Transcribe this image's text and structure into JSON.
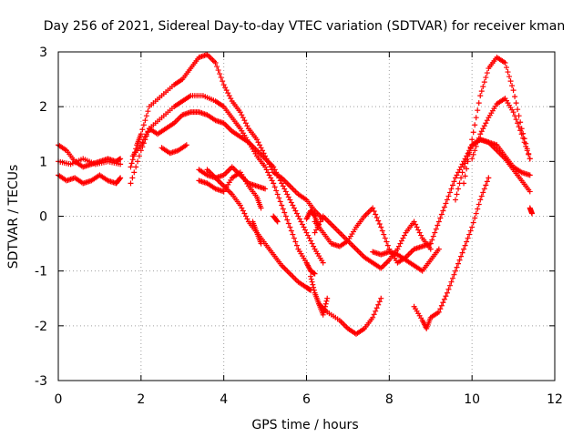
{
  "chart_data": {
    "type": "scatter",
    "title": "Day 256 of 2021, Sidereal Day-to-day VTEC variation (SDTVAR) for receiver kman",
    "xlabel": "GPS time / hours",
    "ylabel": "SDTVAR / TECUs",
    "xlim": [
      0,
      12
    ],
    "ylim": [
      -3,
      3
    ],
    "x_ticks": [
      "0",
      "2",
      "4",
      "6",
      "8",
      "10",
      "12"
    ],
    "y_ticks": [
      "-3",
      "-2",
      "-1",
      "0",
      "1",
      "2",
      "3"
    ],
    "grid": true,
    "marker": "+",
    "color": "#ff0000",
    "series": [
      {
        "x": [
          0.0,
          0.2,
          0.4,
          0.6,
          0.8,
          1.0,
          1.2,
          1.4,
          1.5
        ],
        "y": [
          1.3,
          1.2,
          1.0,
          0.9,
          0.95,
          1.0,
          1.05,
          1.0,
          1.05
        ]
      },
      {
        "x": [
          0.0,
          0.2,
          0.4,
          0.6,
          0.8,
          1.0,
          1.2,
          1.4,
          1.5
        ],
        "y": [
          0.75,
          0.65,
          0.7,
          0.6,
          0.65,
          0.75,
          0.65,
          0.6,
          0.7
        ]
      },
      {
        "x": [
          0.0,
          0.3,
          0.6,
          0.9,
          1.2,
          1.5
        ],
        "y": [
          1.0,
          0.95,
          1.05,
          0.95,
          1.0,
          0.95
        ]
      },
      {
        "x": [
          1.75,
          1.9,
          2.0,
          2.2,
          2.5,
          2.8,
          3.0,
          3.2,
          3.4,
          3.6,
          3.8,
          4.0,
          4.2,
          4.4,
          4.6,
          4.8,
          5.0,
          5.2,
          5.4,
          5.6,
          5.8,
          6.0,
          6.2,
          6.4
        ],
        "y": [
          0.9,
          1.3,
          1.5,
          2.0,
          2.2,
          2.4,
          2.5,
          2.7,
          2.9,
          2.95,
          2.8,
          2.4,
          2.1,
          1.9,
          1.6,
          1.4,
          1.1,
          0.8,
          0.7,
          0.55,
          0.4,
          0.3,
          0.1,
          -0.05
        ]
      },
      {
        "x": [
          1.8,
          2.0,
          2.2,
          2.4,
          2.6,
          2.8,
          3.0,
          3.2,
          3.4,
          3.6,
          3.8,
          4.0,
          4.2,
          4.4,
          4.6,
          4.8,
          5.0,
          5.2,
          5.4,
          5.6,
          5.8,
          6.0,
          6.2,
          6.4
        ],
        "y": [
          1.1,
          1.3,
          1.6,
          1.5,
          1.6,
          1.7,
          1.85,
          1.9,
          1.9,
          1.85,
          1.75,
          1.7,
          1.55,
          1.45,
          1.35,
          1.2,
          1.05,
          0.9,
          0.6,
          0.3,
          0.0,
          -0.3,
          -0.6,
          -0.85
        ]
      },
      {
        "x": [
          1.75,
          2.0,
          2.2,
          2.5,
          2.8,
          3.0,
          3.2,
          3.5,
          3.8,
          4.0,
          4.2,
          4.4,
          4.6,
          4.8,
          5.0,
          5.2,
          5.4,
          5.6,
          5.8,
          6.0,
          6.1,
          6.2
        ],
        "y": [
          0.6,
          1.2,
          1.6,
          1.8,
          2.0,
          2.1,
          2.2,
          2.2,
          2.1,
          2.0,
          1.8,
          1.6,
          1.35,
          1.1,
          0.9,
          0.6,
          0.2,
          -0.2,
          -0.6,
          -0.85,
          -1.0,
          -1.05
        ]
      },
      {
        "x": [
          2.5,
          2.7,
          2.9,
          3.1
        ],
        "y": [
          1.25,
          1.15,
          1.2,
          1.3
        ]
      },
      {
        "x": [
          3.4,
          3.6,
          3.8,
          4.0,
          4.2,
          4.4,
          4.6,
          4.8,
          5.0,
          5.2,
          5.4,
          5.6,
          5.8,
          6.0,
          6.1
        ],
        "y": [
          0.85,
          0.75,
          0.7,
          0.55,
          0.4,
          0.2,
          -0.1,
          -0.3,
          -0.5,
          -0.7,
          -0.9,
          -1.05,
          -1.2,
          -1.3,
          -1.35
        ]
      },
      {
        "x": [
          3.4,
          3.6,
          3.8,
          4.0,
          4.2,
          4.4,
          4.6,
          4.8,
          4.9
        ],
        "y": [
          0.65,
          0.6,
          0.5,
          0.45,
          0.7,
          0.8,
          0.55,
          0.35,
          0.15
        ]
      },
      {
        "x": [
          3.6,
          3.8,
          4.0,
          4.2,
          4.4,
          4.6,
          4.8,
          5.0
        ],
        "y": [
          0.85,
          0.7,
          0.75,
          0.9,
          0.75,
          0.6,
          0.55,
          0.5
        ]
      },
      {
        "x": [
          4.7,
          4.8,
          4.9
        ],
        "y": [
          -0.1,
          -0.3,
          -0.5
        ]
      },
      {
        "x": [
          5.2,
          5.3
        ],
        "y": [
          0.0,
          -0.1
        ]
      },
      {
        "x": [
          6.0,
          6.1,
          6.2,
          6.3
        ],
        "y": [
          -0.05,
          0.1,
          0.0,
          -0.2
        ]
      },
      {
        "x": [
          6.1,
          6.2,
          6.3,
          6.4,
          6.5
        ],
        "y": [
          -1.1,
          -1.4,
          -1.6,
          -1.8,
          -1.5
        ]
      },
      {
        "x": [
          6.3,
          6.5,
          6.8,
          7.0,
          7.2,
          7.4,
          7.6,
          7.8
        ],
        "y": [
          -1.6,
          -1.75,
          -1.9,
          -2.05,
          -2.15,
          -2.05,
          -1.85,
          -1.5
        ]
      },
      {
        "x": [
          6.2,
          6.4,
          6.6,
          6.8,
          7.0,
          7.2,
          7.4,
          7.6,
          7.8,
          8.0,
          8.2,
          8.4,
          8.6,
          8.8,
          9.0
        ],
        "y": [
          -0.1,
          -0.3,
          -0.5,
          -0.55,
          -0.45,
          -0.2,
          0.0,
          0.15,
          -0.2,
          -0.6,
          -0.85,
          -0.75,
          -0.6,
          -0.55,
          -0.5
        ]
      },
      {
        "x": [
          6.2,
          6.4,
          6.6,
          6.8,
          7.0,
          7.2,
          7.4,
          7.6,
          7.8,
          8.0,
          8.2,
          8.4,
          8.6,
          8.8,
          9.0
        ],
        "y": [
          -0.3,
          0.0,
          -0.15,
          -0.3,
          -0.45,
          -0.6,
          -0.75,
          -0.85,
          -0.95,
          -0.8,
          -0.6,
          -0.3,
          -0.1,
          -0.4,
          -0.6
        ]
      },
      {
        "x": [
          7.6,
          7.8,
          8.0,
          8.2,
          8.4,
          8.6,
          8.8,
          9.0,
          9.2
        ],
        "y": [
          -0.65,
          -0.7,
          -0.65,
          -0.7,
          -0.8,
          -0.9,
          -1.0,
          -0.8,
          -0.6
        ]
      },
      {
        "x": [
          8.6,
          8.8,
          8.9,
          9.0,
          9.2,
          9.4,
          9.6,
          9.8,
          10.0,
          10.2,
          10.4
        ],
        "y": [
          -1.65,
          -1.9,
          -2.05,
          -1.85,
          -1.75,
          -1.4,
          -1.0,
          -0.6,
          -0.2,
          0.3,
          0.7
        ]
      },
      {
        "x": [
          9.0,
          9.2,
          9.4,
          9.6,
          9.8,
          10.0,
          10.2,
          10.4,
          10.6,
          10.8,
          11.0,
          11.2,
          11.4
        ],
        "y": [
          -0.5,
          -0.1,
          0.3,
          0.7,
          1.0,
          1.3,
          1.4,
          1.35,
          1.3,
          1.1,
          0.9,
          0.8,
          0.75
        ]
      },
      {
        "x": [
          9.6,
          9.8,
          10.0,
          10.2,
          10.4,
          10.6,
          10.8,
          11.0,
          11.2,
          11.4
        ],
        "y": [
          0.3,
          0.9,
          1.3,
          1.4,
          1.35,
          1.2,
          1.05,
          0.85,
          0.65,
          0.45
        ]
      },
      {
        "x": [
          9.8,
          10.0,
          10.2,
          10.4,
          10.6,
          10.8,
          11.0,
          11.2,
          11.4
        ],
        "y": [
          0.6,
          1.4,
          2.2,
          2.7,
          2.9,
          2.8,
          2.3,
          1.6,
          1.05
        ]
      },
      {
        "x": [
          10.0,
          10.2,
          10.4,
          10.6,
          10.8,
          11.0,
          11.2,
          11.4
        ],
        "y": [
          1.05,
          1.5,
          1.8,
          2.05,
          2.15,
          1.9,
          1.5,
          1.05
        ]
      },
      {
        "x": [
          11.4,
          11.45
        ],
        "y": [
          0.15,
          0.05
        ]
      }
    ]
  }
}
